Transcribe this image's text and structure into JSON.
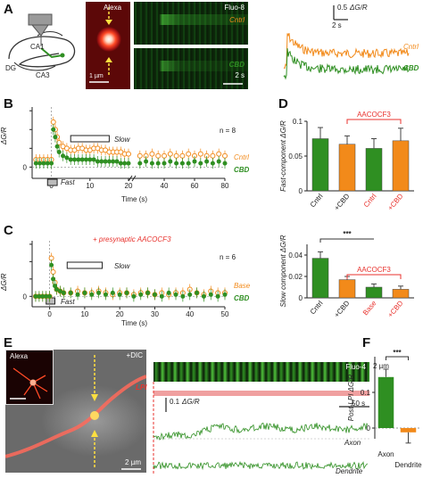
{
  "panel_letters": [
    "A",
    "B",
    "C",
    "D",
    "E",
    "F"
  ],
  "panelA": {
    "alexa_label": "Alexa",
    "scale_1um": "1 µm",
    "fluo_label": "Fluo-8",
    "cntrl_label": "Cntrl",
    "cbd_label": "CBD",
    "scale_2s": "2 s",
    "hippo": {
      "ca1": "CA1",
      "ca3": "CA3",
      "dg": "DG"
    },
    "trace_scale_dgr": "0.5",
    "trace_scale_unit": "ΔG/R",
    "trace_scale_time": "2 s",
    "trace_cntrl": "Cntrl",
    "trace_cbd": "CBD"
  },
  "panelB": {
    "n_label": "n = 8",
    "slow_label": "Slow",
    "fast_label": "Fast",
    "cntrl_label": "Cntrl",
    "cbd_label": "CBD",
    "ylabel": "ΔG/R",
    "xlabel": "Time (s)"
  },
  "panelC": {
    "title": "+ presynaptic AACOCF3",
    "n_label": "n = 6",
    "slow_label": "Slow",
    "fast_label": "Fast",
    "base_label": "Base",
    "cbd_label": "CBD",
    "ylabel": "ΔG/R",
    "xlabel": "Time (s)"
  },
  "panelD": {
    "top_ylabel": "Fast-component ΔG/R",
    "top_bracket": "AACOCF3",
    "bottom_ylabel": "Slow component ΔG/R",
    "bottom_bracket": "AACOCF3",
    "significance": "***"
  },
  "panelE": {
    "alexa_label": "Alexa",
    "dic_label": "+DIC",
    "scale_2um": "2 µm",
    "fluo_label": "Fluo-4",
    "scale_2um_right": "2 µm",
    "lpi_label": "LPI",
    "dgr_scale": "0.1",
    "dgr_unit": "ΔG/R",
    "time_scale": "50 s",
    "axon_label": "Axon",
    "dendrite_label": "Dendrite"
  },
  "panelF": {
    "ylabel": "Post-LPI ΔG/R",
    "significance": "***"
  },
  "chart_data": [
    {
      "id": "B",
      "type": "scatter",
      "xlabel": "Time (s)",
      "ylabel": "ΔG/R",
      "xlim": [
        -5,
        80
      ],
      "ylim": [
        -0.03,
        0.16
      ],
      "x_ticks": [
        0,
        10,
        20,
        40,
        60,
        80
      ],
      "y_ticks": [
        0,
        0.05,
        0.1,
        0.15
      ],
      "y_tick_labels": [
        "0",
        "",
        "",
        ""
      ],
      "axis_break": 20,
      "series": [
        {
          "name": "Cntrl",
          "color": "#f28a1a",
          "x": [
            -4,
            -3,
            -2,
            -1,
            0,
            0.5,
            1,
            1.5,
            2,
            3,
            4,
            5,
            6,
            7,
            8,
            9,
            10,
            11,
            12,
            13,
            14,
            15,
            16,
            17,
            18,
            19,
            20,
            24,
            28,
            32,
            36,
            40,
            44,
            48,
            52,
            56,
            60,
            64,
            68,
            72,
            76,
            80
          ],
          "y": [
            0.02,
            0.02,
            0.02,
            0.02,
            0.02,
            0.12,
            0.1,
            0.08,
            0.065,
            0.055,
            0.05,
            0.045,
            0.045,
            0.05,
            0.05,
            0.045,
            0.045,
            0.05,
            0.05,
            0.045,
            0.045,
            0.04,
            0.04,
            0.04,
            0.04,
            0.035,
            0.035,
            0.03,
            0.03,
            0.035,
            0.03,
            0.03,
            0.035,
            0.03,
            0.03,
            0.035,
            0.03,
            0.035,
            0.03,
            0.03,
            0.035,
            0.03
          ]
        },
        {
          "name": "CBD",
          "color": "#2f8f22",
          "x": [
            -4,
            -3,
            -2,
            -1,
            0,
            0.5,
            1,
            1.5,
            2,
            3,
            4,
            5,
            6,
            7,
            8,
            9,
            10,
            11,
            12,
            13,
            14,
            15,
            16,
            17,
            18,
            19,
            20,
            24,
            28,
            32,
            36,
            40,
            44,
            48,
            52,
            56,
            60,
            64,
            68,
            72,
            76,
            80
          ],
          "y": [
            0.01,
            0.01,
            0.01,
            0.01,
            0.01,
            0.1,
            0.08,
            0.055,
            0.04,
            0.03,
            0.025,
            0.02,
            0.02,
            0.02,
            0.02,
            0.02,
            0.02,
            0.02,
            0.015,
            0.015,
            0.015,
            0.015,
            0.015,
            0.015,
            0.01,
            0.01,
            0.01,
            0.01,
            0.015,
            0.01,
            0.01,
            0.01,
            0.015,
            0.01,
            0.01,
            0.01,
            0.015,
            0.01,
            0.015,
            0.01,
            0.015,
            0.01
          ]
        }
      ]
    },
    {
      "id": "C",
      "type": "scatter",
      "xlabel": "Time (s)",
      "ylabel": "ΔG/R",
      "xlim": [
        -5,
        50
      ],
      "ylim": [
        -0.03,
        0.16
      ],
      "x_ticks": [
        0,
        10,
        20,
        30,
        40,
        50
      ],
      "y_ticks": [
        0,
        0.05,
        0.1,
        0.15
      ],
      "y_tick_labels": [
        "0",
        "",
        "",
        ""
      ],
      "series": [
        {
          "name": "Base",
          "color": "#f28a1a",
          "x": [
            -4,
            -3,
            -2,
            -1,
            0,
            0.5,
            1,
            1.5,
            2,
            3,
            4,
            6,
            8,
            10,
            12,
            14,
            16,
            18,
            20,
            22,
            24,
            26,
            28,
            30,
            32,
            34,
            36,
            38,
            40,
            42,
            44,
            46,
            48,
            50
          ],
          "y": [
            0.0,
            0.0,
            0.0,
            0.0,
            0.0,
            0.11,
            0.07,
            0.04,
            0.02,
            0.015,
            0.01,
            0.01,
            0.015,
            0.01,
            0.01,
            0.015,
            0.01,
            0.005,
            0.01,
            0.01,
            0.005,
            0.01,
            0.01,
            0.005,
            0.01,
            0.005,
            0.01,
            0.01,
            0.02,
            0.01,
            0.005,
            0.015,
            0.01,
            0.01
          ]
        },
        {
          "name": "CBD",
          "color": "#2f8f22",
          "x": [
            -4,
            -3,
            -2,
            -1,
            0,
            0.5,
            1,
            1.5,
            2,
            3,
            4,
            6,
            8,
            10,
            12,
            14,
            16,
            18,
            20,
            22,
            24,
            26,
            28,
            30,
            32,
            34,
            36,
            38,
            40,
            42,
            44,
            46,
            48,
            50
          ],
          "y": [
            0.0,
            0.0,
            0.0,
            0.0,
            0.0,
            0.09,
            0.05,
            0.03,
            0.02,
            0.015,
            0.01,
            0.01,
            0.005,
            0.01,
            0.005,
            0.01,
            0.005,
            0.01,
            0.005,
            0.01,
            0.0,
            0.005,
            0.01,
            0.005,
            0.0,
            0.01,
            0.005,
            0.0,
            0.005,
            0.01,
            0.0,
            0.005,
            0.0,
            0.005
          ]
        }
      ]
    },
    {
      "id": "D-top",
      "type": "bar",
      "ylabel": "Fast-component ΔG/R",
      "ylim": [
        0,
        0.1
      ],
      "y_ticks": [
        0,
        0.05,
        0.1
      ],
      "categories": [
        "Cntrl",
        "+CBD",
        "Cntrl",
        "+CBD"
      ],
      "category_colors": [
        "#222222",
        "#222222",
        "#e8322d",
        "#e8322d"
      ],
      "bar_colors": [
        "#2f8f22",
        "#f28a1a",
        "#2f8f22",
        "#f28a1a"
      ],
      "values": [
        0.075,
        0.067,
        0.061,
        0.072
      ],
      "errors": [
        0.016,
        0.012,
        0.014,
        0.018
      ],
      "bracket_label": "AACOCF3"
    },
    {
      "id": "D-bottom",
      "type": "bar",
      "ylabel": "Slow component ΔG/R",
      "ylim": [
        0,
        0.05
      ],
      "y_ticks": [
        0,
        0.02,
        0.04
      ],
      "categories": [
        "Cntrl",
        "+CBD",
        "Base",
        "+CBD"
      ],
      "category_colors": [
        "#222222",
        "#222222",
        "#e8322d",
        "#e8322d"
      ],
      "bar_colors": [
        "#2f8f22",
        "#f28a1a",
        "#2f8f22",
        "#f28a1a"
      ],
      "values": [
        0.037,
        0.017,
        0.01,
        0.008
      ],
      "errors": [
        0.006,
        0.003,
        0.003,
        0.003
      ],
      "bracket_label": "AACOCF3",
      "significance": "***"
    },
    {
      "id": "F",
      "type": "bar",
      "ylabel": "Post-LPI ΔG/R",
      "ylim": [
        -0.03,
        0.2
      ],
      "y_ticks": [
        0,
        0.1
      ],
      "categories": [
        "Axon",
        "Dendrite"
      ],
      "bar_colors": [
        "#2f8f22",
        "#f28a1a"
      ],
      "values": [
        0.143,
        -0.012
      ],
      "errors": [
        0.022,
        0.03
      ],
      "significance": "***"
    }
  ]
}
